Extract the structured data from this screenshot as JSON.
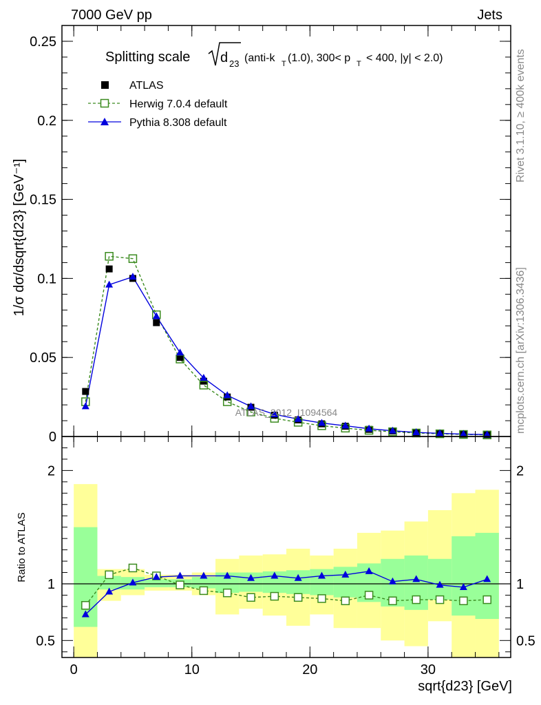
{
  "header": {
    "left": "7000 GeV pp",
    "right": "Jets"
  },
  "side_labels": {
    "rivet": "Rivet 3.1.10, ≥ 400k events",
    "mcplots": "mcplots.cern.ch [arXiv:1306.3436]"
  },
  "title": {
    "prefix": "Splitting scale",
    "var": "d",
    "var_sub": "23",
    "cuts_a": "(anti-k",
    "cuts_a_sub": "T",
    "cuts_b": "(1.0), 300< p",
    "cuts_b_sub": "T",
    "cuts_c": "< 400, |y| < 2.0)"
  },
  "watermark": "ATLAS_2012_I1094564",
  "colors": {
    "atlas": "#000000",
    "herwig": "#3a8a1e",
    "pythia": "#0000dd",
    "band_stat": "#99ff99",
    "band_total": "#ffff99"
  },
  "chart_data": [
    {
      "type": "scatter",
      "panel": "main",
      "ylabel": "1/σ dσ/dsqrt{d23} [GeV⁻¹]",
      "xlim": [
        -1,
        37
      ],
      "ylim": [
        0,
        0.26
      ],
      "y_ticks": [
        0,
        0.05,
        0.1,
        0.15,
        0.2,
        0.25
      ],
      "y_tick_labels": [
        "0",
        "0.05",
        "0.1",
        "0.15",
        "0.2",
        "0.25"
      ],
      "legend_position": "top-left",
      "x": [
        1,
        3,
        5,
        7,
        9,
        11,
        13,
        15,
        17,
        19,
        21,
        23,
        25,
        27,
        29,
        31,
        33,
        35
      ],
      "series": [
        {
          "name": "ATLAS",
          "values": [
            0.0285,
            0.106,
            0.1,
            0.072,
            0.05,
            0.035,
            0.025,
            0.0185,
            0.0135,
            0.0105,
            0.008,
            0.0065,
            0.0045,
            0.0035,
            0.0025,
            0.002,
            0.0015,
            0.0012
          ]
        },
        {
          "name": "Herwig 7.0.4 default",
          "values": [
            0.022,
            0.114,
            0.1125,
            0.077,
            0.049,
            0.0325,
            0.022,
            0.0155,
            0.0115,
            0.009,
            0.0068,
            0.0053,
            0.0039,
            0.003,
            0.0022,
            0.0017,
            0.0013,
            0.001
          ]
        },
        {
          "name": "Pythia 8.308 default",
          "values": [
            0.019,
            0.096,
            0.101,
            0.076,
            0.053,
            0.037,
            0.026,
            0.019,
            0.014,
            0.011,
            0.0085,
            0.0068,
            0.0049,
            0.0036,
            0.0026,
            0.002,
            0.0015,
            0.0012
          ]
        }
      ]
    },
    {
      "type": "line",
      "panel": "ratio",
      "ylabel": "Ratio to ATLAS",
      "xlabel": "sqrt{d23} [GeV]",
      "xlim": [
        -1,
        37
      ],
      "ylim": [
        0.35,
        2.3
      ],
      "y_ticks": [
        0.5,
        1,
        2
      ],
      "y_tick_labels": [
        "0.5",
        "1",
        "2"
      ],
      "x_ticks": [
        0,
        10,
        20,
        30
      ],
      "x_tick_labels": [
        "0",
        "10",
        "20",
        "30"
      ],
      "x": [
        1,
        3,
        5,
        7,
        9,
        11,
        13,
        15,
        17,
        19,
        21,
        23,
        25,
        27,
        29,
        31,
        33,
        35
      ],
      "bins": [
        [
          0,
          2
        ],
        [
          2,
          4
        ],
        [
          4,
          6
        ],
        [
          6,
          8
        ],
        [
          8,
          10
        ],
        [
          10,
          12
        ],
        [
          12,
          14
        ],
        [
          14,
          16
        ],
        [
          16,
          18
        ],
        [
          18,
          20
        ],
        [
          20,
          22
        ],
        [
          22,
          24
        ],
        [
          24,
          26
        ],
        [
          26,
          28
        ],
        [
          28,
          30
        ],
        [
          30,
          32
        ],
        [
          32,
          34
        ],
        [
          34,
          36
        ]
      ],
      "band_stat": [
        [
          0.62,
          1.5
        ],
        [
          0.95,
          1.07
        ],
        [
          0.95,
          1.06
        ],
        [
          0.97,
          1.04
        ],
        [
          0.97,
          1.04
        ],
        [
          0.96,
          1.06
        ],
        [
          0.92,
          1.1
        ],
        [
          0.93,
          1.1
        ],
        [
          0.92,
          1.11
        ],
        [
          0.91,
          1.12
        ],
        [
          0.9,
          1.13
        ],
        [
          0.88,
          1.15
        ],
        [
          0.84,
          1.18
        ],
        [
          0.8,
          1.22
        ],
        [
          0.77,
          1.25
        ],
        [
          0.86,
          1.22
        ],
        [
          0.72,
          1.42
        ],
        [
          0.69,
          1.45
        ]
      ],
      "band_total": [
        [
          0.35,
          1.88
        ],
        [
          0.85,
          1.13
        ],
        [
          0.9,
          1.13
        ],
        [
          0.94,
          1.08
        ],
        [
          0.94,
          1.08
        ],
        [
          0.9,
          1.1
        ],
        [
          0.73,
          1.22
        ],
        [
          0.78,
          1.25
        ],
        [
          0.72,
          1.26
        ],
        [
          0.63,
          1.31
        ],
        [
          0.73,
          1.25
        ],
        [
          0.61,
          1.31
        ],
        [
          0.61,
          1.45
        ],
        [
          0.5,
          1.47
        ],
        [
          0.45,
          1.55
        ],
        [
          0.67,
          1.65
        ],
        [
          0.35,
          1.8
        ],
        [
          0.35,
          1.83
        ]
      ],
      "series": [
        {
          "name": "Herwig 7.0.4 default",
          "values": [
            0.81,
            1.08,
            1.14,
            1.07,
            0.99,
            0.94,
            0.92,
            0.88,
            0.89,
            0.88,
            0.87,
            0.85,
            0.9,
            0.85,
            0.86,
            0.86,
            0.85,
            0.86
          ]
        },
        {
          "name": "Pythia 8.308 default",
          "values": [
            0.73,
            0.93,
            1.01,
            1.06,
            1.07,
            1.07,
            1.07,
            1.05,
            1.07,
            1.05,
            1.07,
            1.08,
            1.11,
            1.02,
            1.04,
            0.99,
            0.97,
            1.04
          ]
        }
      ]
    }
  ]
}
